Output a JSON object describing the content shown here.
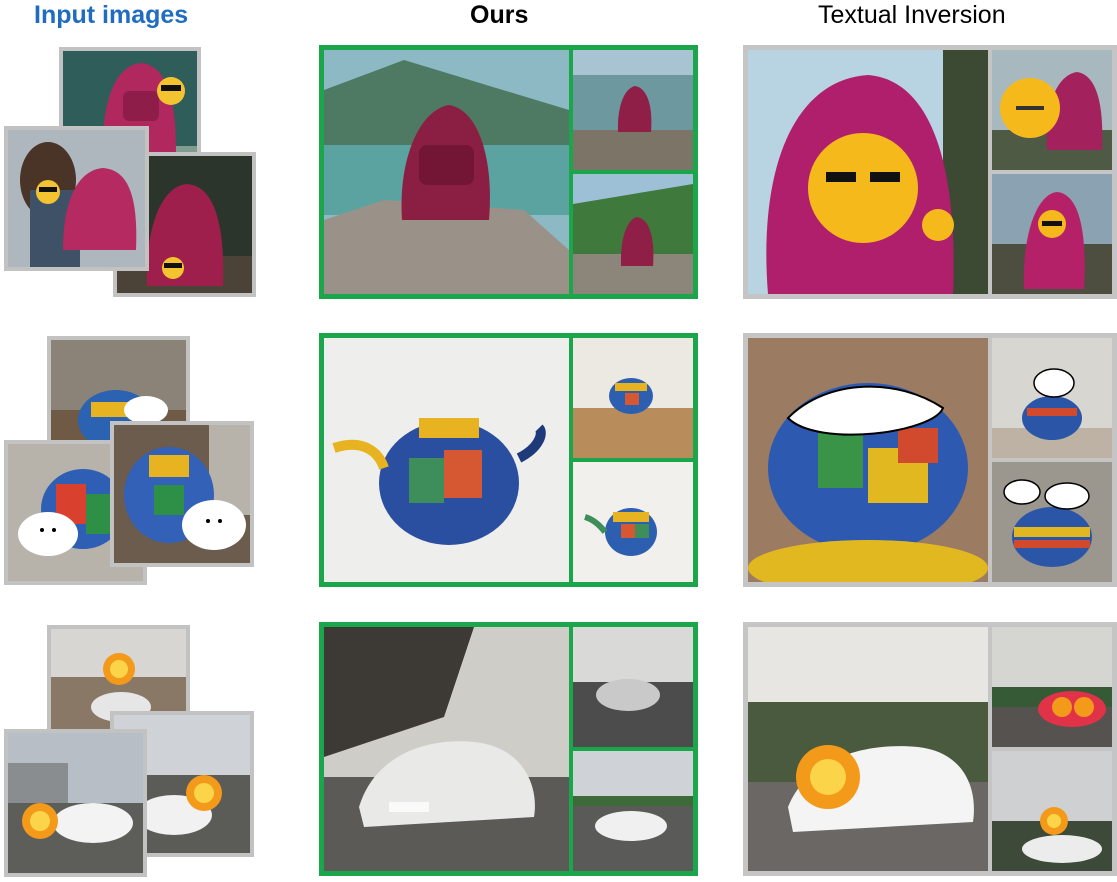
{
  "headers": {
    "input_images": "Input images",
    "ours": "Ours",
    "textual_inversion": "Textual Inversion"
  },
  "colors": {
    "input_header": "#1f6cc0",
    "ours_frame": "#1ba64b",
    "baseline_frame": "#c5c5c5",
    "input_frame": "#c2c2c2"
  },
  "rows": [
    {
      "subject": "backpack",
      "sticker": "sunglasses-emoji"
    },
    {
      "subject": "teapot",
      "sticker": "white-cartoon-dog"
    },
    {
      "subject": "car",
      "sticker": "orange-flower-face"
    }
  ]
}
